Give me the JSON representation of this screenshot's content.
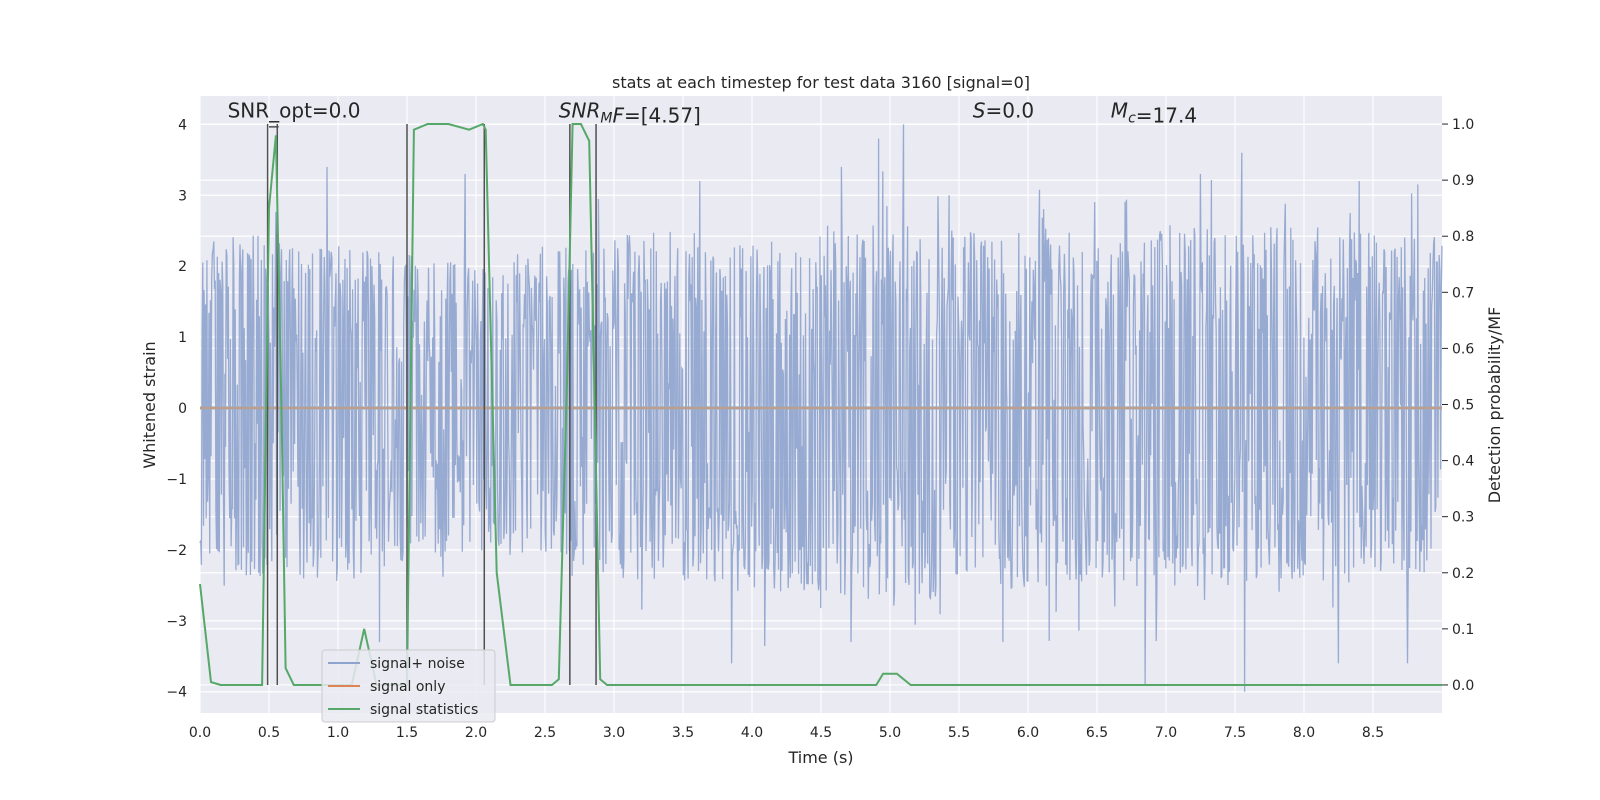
{
  "chart_data": {
    "type": "line",
    "title": "stats at each timestep for test data 3160 [signal=0]",
    "xlabel": "Time (s)",
    "ylabel": "Whitened strain",
    "ylabel_right": "Detection probability/MF",
    "xlim": [
      0.0,
      9.0
    ],
    "ylim": [
      -4.3,
      4.4
    ],
    "ylim_right": [
      -0.05,
      1.05
    ],
    "xticks": [
      "0.0",
      "0.5",
      "1.0",
      "1.5",
      "2.0",
      "2.5",
      "3.0",
      "3.5",
      "4.0",
      "4.5",
      "5.0",
      "5.5",
      "6.0",
      "6.5",
      "7.0",
      "7.5",
      "8.0",
      "8.5"
    ],
    "xtick_values": [
      0,
      0.5,
      1,
      1.5,
      2,
      2.5,
      3,
      3.5,
      4,
      4.5,
      5,
      5.5,
      6,
      6.5,
      7,
      7.5,
      8,
      8.5
    ],
    "yticks": [
      "−4",
      "−3",
      "−2",
      "−1",
      "0",
      "1",
      "2",
      "3",
      "4"
    ],
    "ytick_values": [
      -4,
      -3,
      -2,
      -1,
      0,
      1,
      2,
      3,
      4
    ],
    "yticks_right": [
      "0.0",
      "0.1",
      "0.2",
      "0.3",
      "0.4",
      "0.5",
      "0.6",
      "0.7",
      "0.8",
      "0.9",
      "1.0"
    ],
    "ytick_right_values": [
      0,
      0.1,
      0.2,
      0.3,
      0.4,
      0.5,
      0.6,
      0.7,
      0.8,
      0.9,
      1.0
    ],
    "grid": true,
    "legend_position": "lower-left",
    "series": [
      {
        "name": "signal+ noise",
        "color": "#8ea3cd",
        "axis": "left",
        "style": "noise",
        "envelope_upper": [
          [
            0,
            2.2
          ],
          [
            0.25,
            2.5
          ],
          [
            0.5,
            2.6
          ],
          [
            0.75,
            2.2
          ],
          [
            1.0,
            2.3
          ],
          [
            1.5,
            2.2
          ],
          [
            2.0,
            2.0
          ],
          [
            2.5,
            2.3
          ],
          [
            3.0,
            2.5
          ],
          [
            3.5,
            2.5
          ],
          [
            4.0,
            2.3
          ],
          [
            4.5,
            2.6
          ],
          [
            5.0,
            2.6
          ],
          [
            5.5,
            2.5
          ],
          [
            6.0,
            2.5
          ],
          [
            6.5,
            2.3
          ],
          [
            7.0,
            2.6
          ],
          [
            7.5,
            2.5
          ],
          [
            8.0,
            2.6
          ],
          [
            8.5,
            2.5
          ],
          [
            9.0,
            2.4
          ]
        ],
        "envelope_lower": [
          [
            0,
            -2.3
          ],
          [
            0.5,
            -2.4
          ],
          [
            1.0,
            -2.5
          ],
          [
            1.5,
            -2.2
          ],
          [
            2.0,
            -2.0
          ],
          [
            2.5,
            -2.2
          ],
          [
            3.0,
            -2.4
          ],
          [
            3.5,
            -2.5
          ],
          [
            4.0,
            -2.6
          ],
          [
            4.5,
            -2.6
          ],
          [
            5.0,
            -2.8
          ],
          [
            5.5,
            -2.6
          ],
          [
            6.0,
            -2.6
          ],
          [
            6.5,
            -2.4
          ],
          [
            7.0,
            -2.6
          ],
          [
            7.5,
            -2.6
          ],
          [
            8.0,
            -2.6
          ],
          [
            8.5,
            -2.4
          ],
          [
            9.0,
            -2.3
          ]
        ],
        "peaks": [
          [
            0.92,
            3.4
          ],
          [
            1.92,
            3.3
          ],
          [
            3.62,
            3.2
          ],
          [
            4.65,
            3.4
          ],
          [
            4.92,
            3.8
          ],
          [
            5.1,
            4.0
          ],
          [
            5.43,
            3.0
          ],
          [
            7.25,
            3.3
          ],
          [
            7.55,
            3.6
          ],
          [
            8.4,
            3.2
          ],
          [
            3.85,
            -3.6
          ],
          [
            4.72,
            -3.3
          ],
          [
            6.85,
            -3.9
          ],
          [
            7.57,
            -4.0
          ],
          [
            8.25,
            -3.6
          ],
          [
            8.75,
            -3.6
          ],
          [
            5.82,
            -3.3
          ],
          [
            1.3,
            -3.3
          ]
        ]
      },
      {
        "name": "signal only",
        "color": "#dd8452",
        "axis": "left",
        "x": [
          0.0,
          9.0
        ],
        "y": [
          0.0,
          0.0
        ]
      },
      {
        "name": "signal statistics",
        "color": "#55a868",
        "axis": "right",
        "x": [
          0.0,
          0.08,
          0.15,
          0.45,
          0.5,
          0.55,
          0.59,
          0.62,
          0.68,
          0.9,
          1.1,
          1.19,
          1.28,
          1.5,
          1.55,
          1.65,
          1.8,
          1.95,
          2.05,
          2.07,
          2.15,
          2.25,
          2.55,
          2.6,
          2.66,
          2.7,
          2.76,
          2.82,
          2.86,
          2.9,
          2.95,
          3.2,
          4.9,
          4.95,
          5.05,
          5.15,
          5.25,
          9.0
        ],
        "y": [
          0.18,
          0.005,
          0.0,
          0.0,
          0.85,
          0.98,
          0.5,
          0.03,
          0.0,
          0.0,
          0.0,
          0.1,
          0.0,
          0.0,
          0.99,
          1.0,
          1.0,
          0.99,
          1.0,
          0.99,
          0.2,
          0.0,
          0.0,
          0.01,
          0.55,
          1.0,
          1.0,
          0.97,
          0.5,
          0.01,
          0.0,
          0.0,
          0.0,
          0.02,
          0.02,
          0.0,
          0.0,
          0.0
        ]
      }
    ],
    "vlines": [
      0.49,
      0.56,
      1.5,
      2.06,
      2.68,
      2.87
    ],
    "hsegments": [
      [
        0.5,
        0.57,
        0.995
      ]
    ],
    "annotations": [
      {
        "id": "snr-opt",
        "text": "SNR_opt=0.0",
        "x": 0.2,
        "y": 4.1
      },
      {
        "id": "snr-mf",
        "text": "SNRₘF=[4.57]",
        "x": 2.6,
        "y": 4.1,
        "parts": [
          {
            "t": "SNR",
            "i": true
          },
          {
            "t": "M",
            "i": true,
            "sub": true
          },
          {
            "t": "F",
            "i": true
          },
          {
            "t": "=[4.57]"
          }
        ]
      },
      {
        "id": "s-val",
        "text": "S=0.0",
        "x": 5.6,
        "y": 4.1,
        "parts": [
          {
            "t": "S",
            "i": true
          },
          {
            "t": "=0.0"
          }
        ]
      },
      {
        "id": "mc-val",
        "text": "Mc=17.4",
        "x": 6.6,
        "y": 4.1,
        "parts": [
          {
            "t": "M",
            "i": true
          },
          {
            "t": "c",
            "i": true,
            "sub": true
          },
          {
            "t": "=17.4"
          }
        ]
      }
    ]
  }
}
